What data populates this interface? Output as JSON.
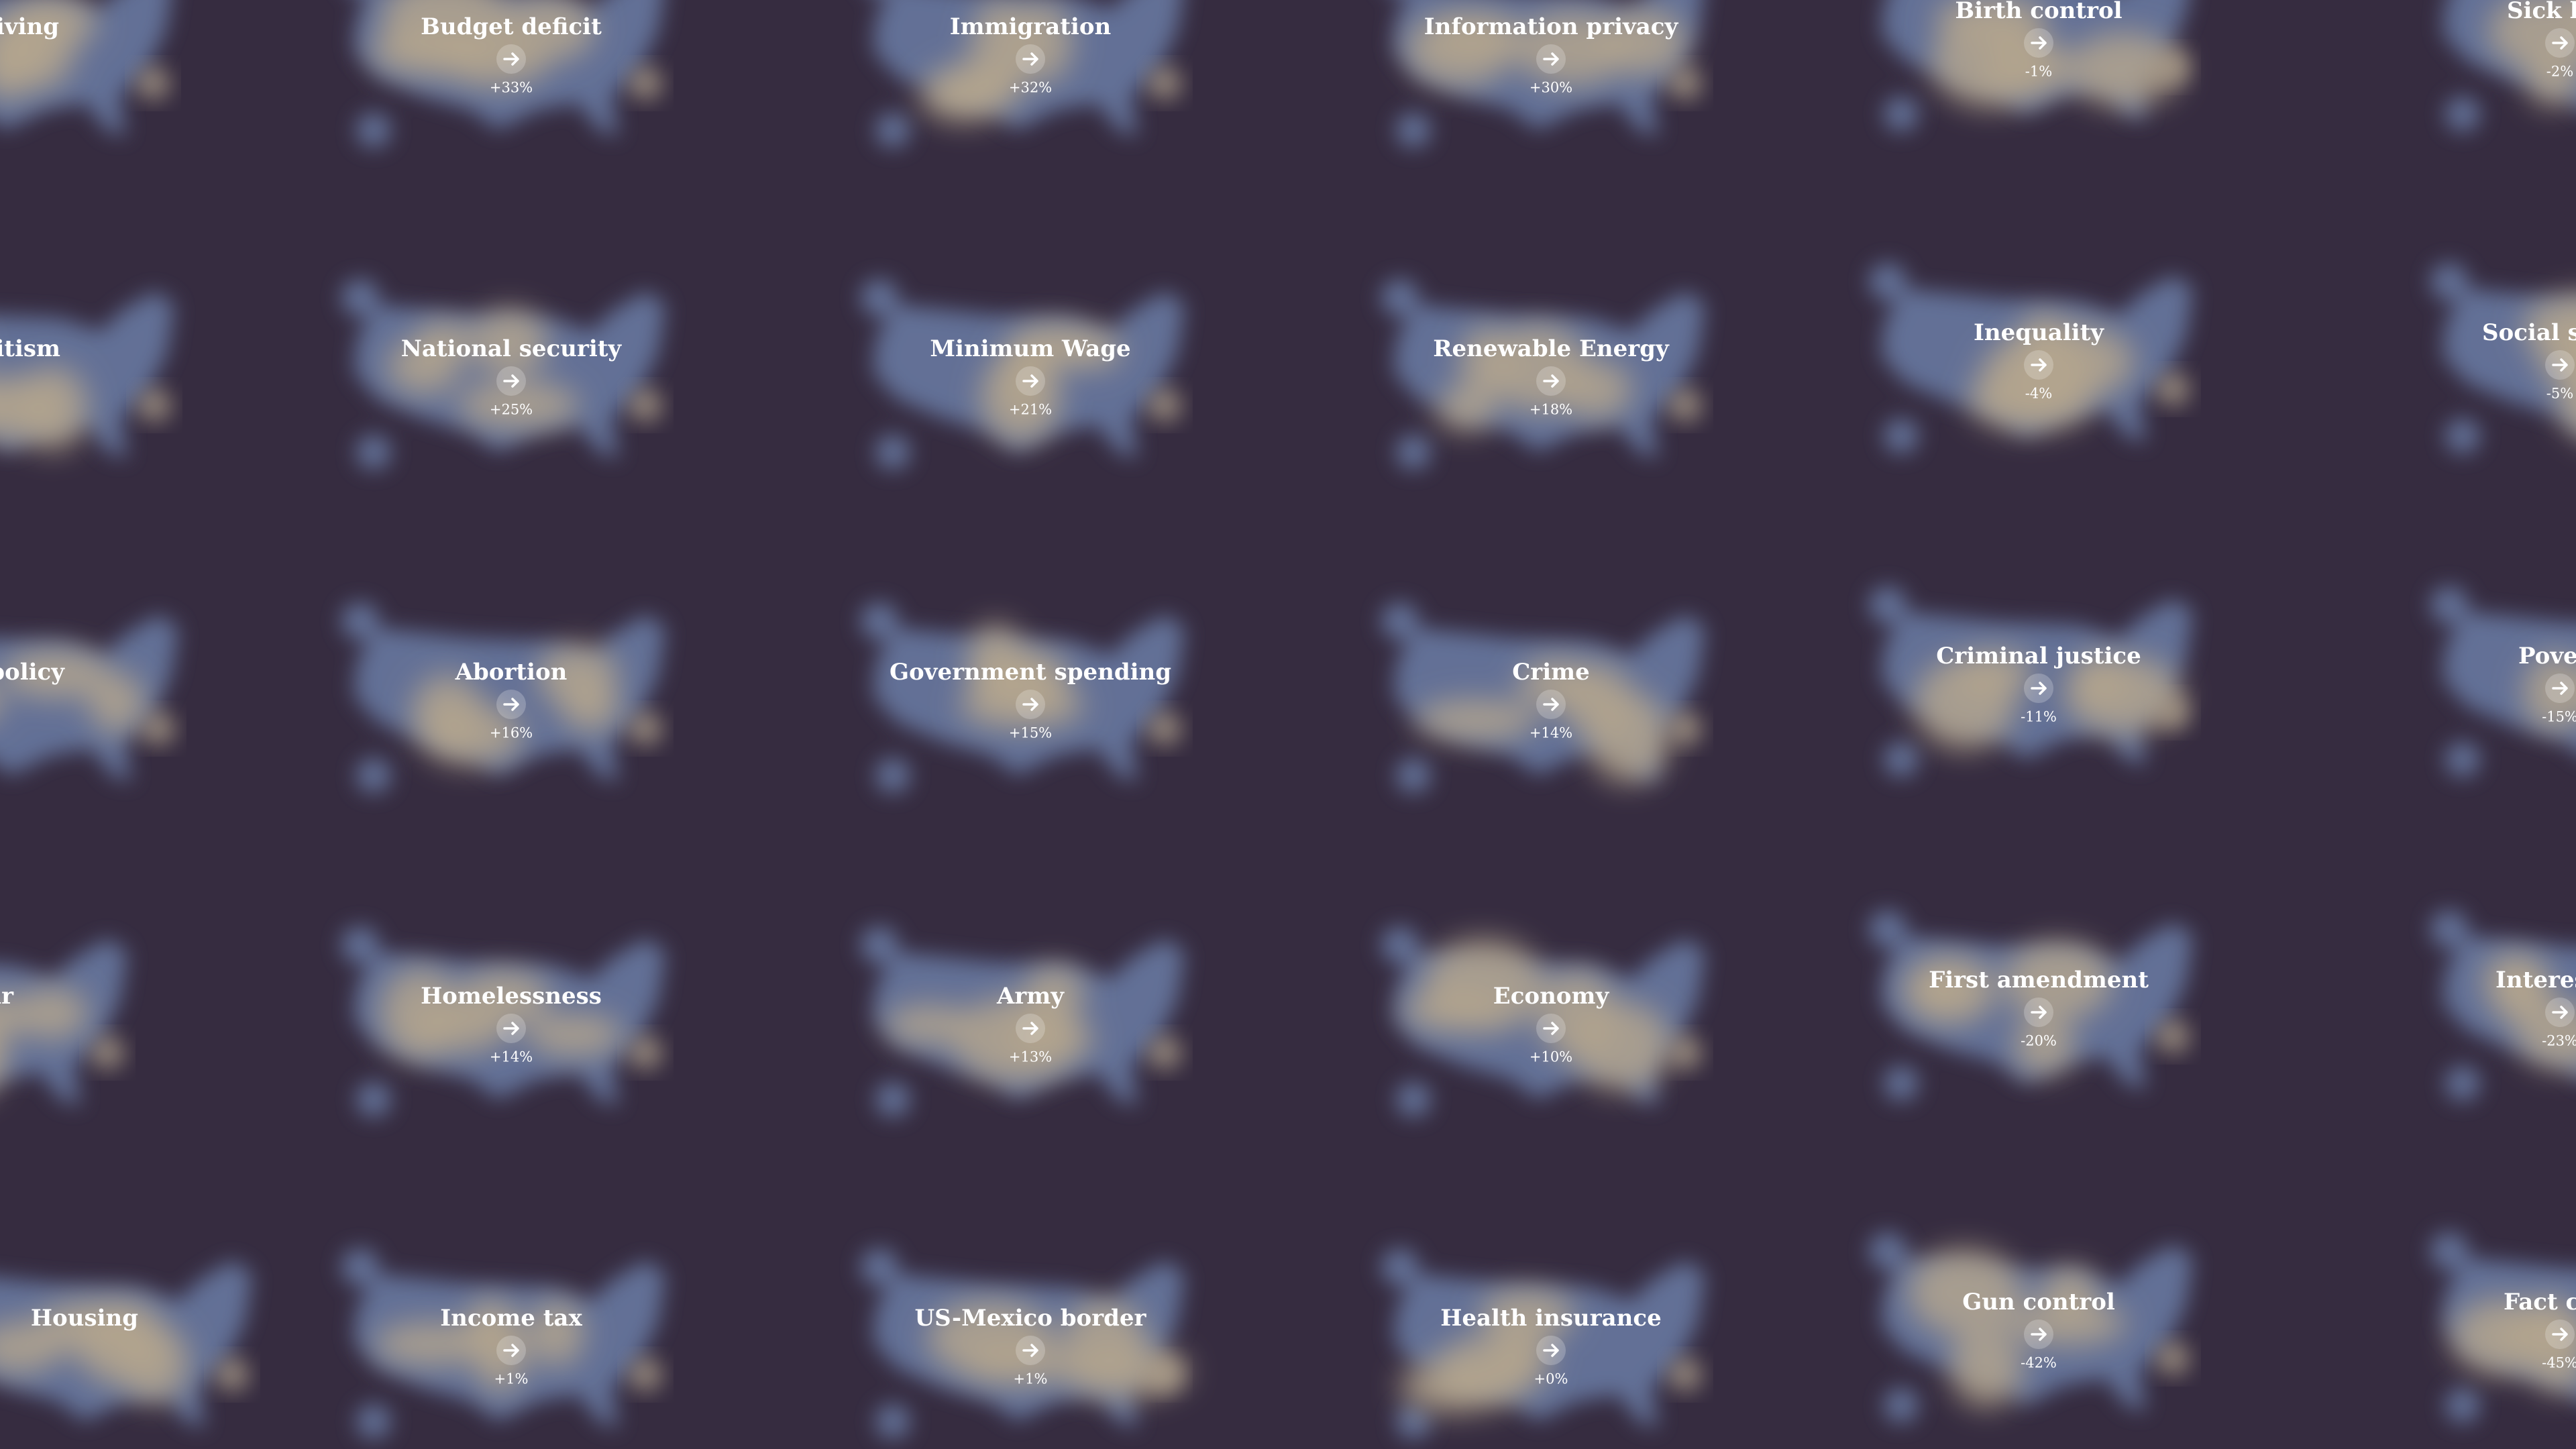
{
  "rows": [
    {
      "left": {
        "label": "living"
      },
      "tiles": [
        {
          "label": "Budget deficit",
          "change": "+33%"
        },
        {
          "label": "Immigration",
          "change": "+32%"
        },
        {
          "label": "Information privacy",
          "change": "+30%"
        },
        {
          "label": "Birth control",
          "change": "-1%"
        }
      ],
      "right": {
        "label": "Sick le",
        "change": "-2%"
      }
    },
    {
      "left": {
        "label": "nitism"
      },
      "tiles": [
        {
          "label": "National security",
          "change": "+25%"
        },
        {
          "label": "Minimum Wage",
          "change": "+21%"
        },
        {
          "label": "Renewable Energy",
          "change": "+18%"
        },
        {
          "label": "Inequality",
          "change": "-4%"
        }
      ],
      "right": {
        "label": "Social se",
        "change": "-5%"
      }
    },
    {
      "left": {
        "label": "policy"
      },
      "tiles": [
        {
          "label": "Abortion",
          "change": "+16%"
        },
        {
          "label": "Government spending",
          "change": "+15%"
        },
        {
          "label": "Crime",
          "change": "+14%"
        },
        {
          "label": "Criminal justice",
          "change": "-11%"
        }
      ],
      "right": {
        "label": "Pover",
        "change": "-15%"
      }
    },
    {
      "left": {
        "label": "ar"
      },
      "tiles": [
        {
          "label": "Homelessness",
          "change": "+14%"
        },
        {
          "label": "Army",
          "change": "+13%"
        },
        {
          "label": "Economy",
          "change": "+10%"
        },
        {
          "label": "First amendment",
          "change": "-20%"
        }
      ],
      "right": {
        "label": "Interest",
        "change": "-23%"
      }
    },
    {
      "left": {
        "label": "Housing"
      },
      "tiles": [
        {
          "label": "Income tax",
          "change": "+1%"
        },
        {
          "label": "US-Mexico border",
          "change": "+1%"
        },
        {
          "label": "Health insurance",
          "change": "+0%"
        },
        {
          "label": "Gun control",
          "change": "-42%"
        }
      ],
      "right": {
        "label": "Fact ch",
        "change": "-45%"
      }
    }
  ]
}
